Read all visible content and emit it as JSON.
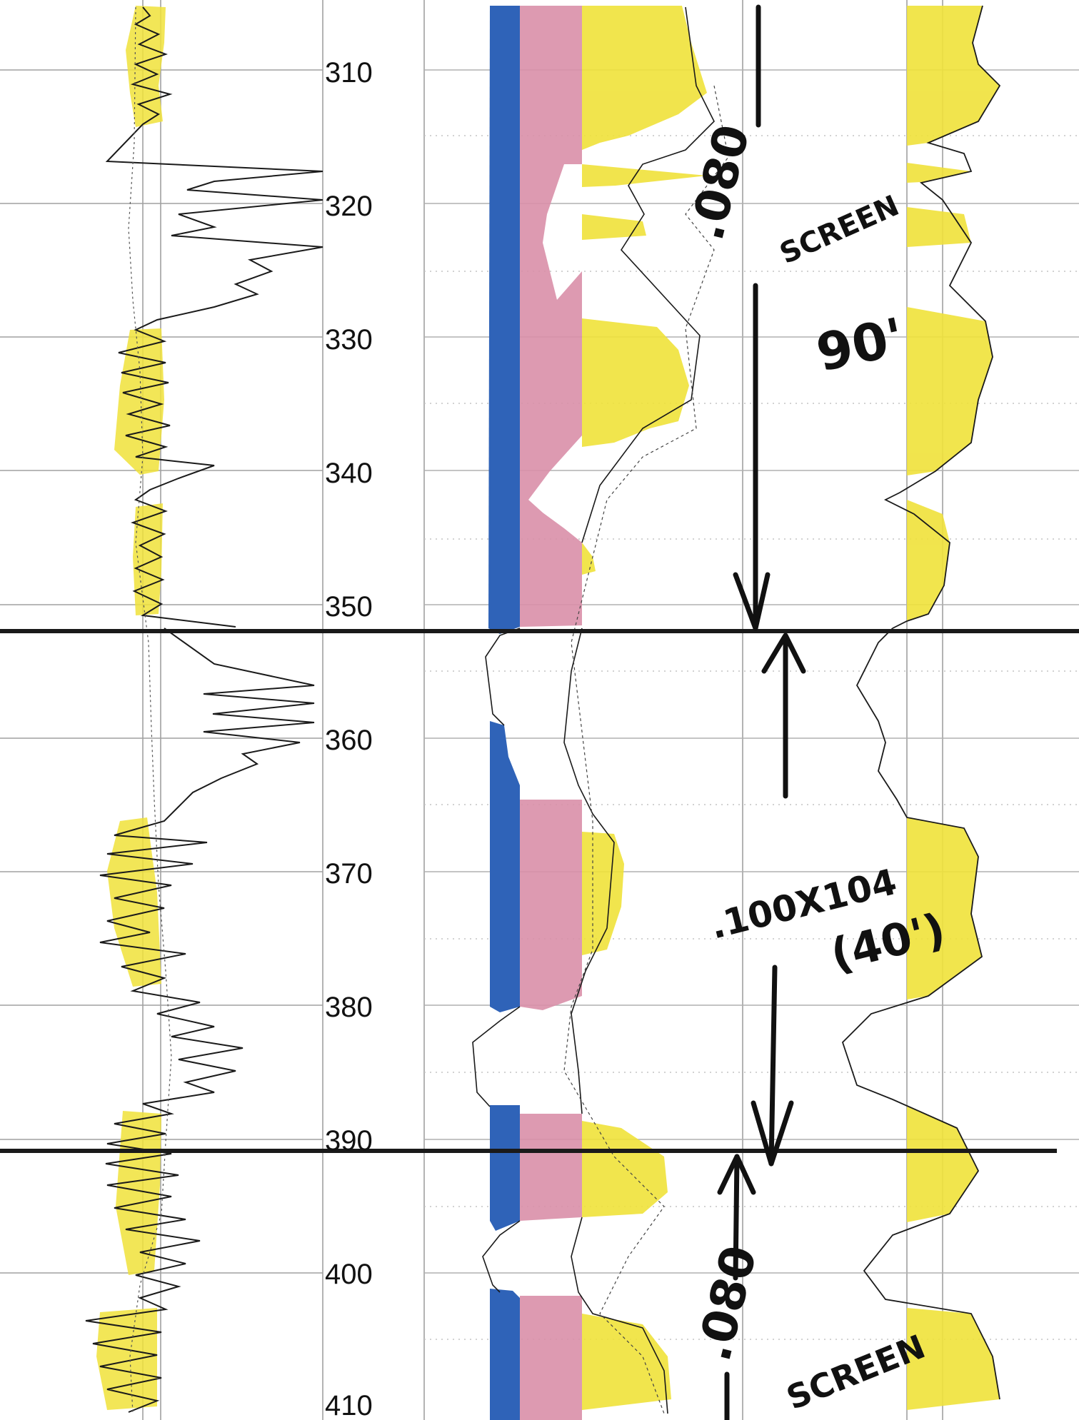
{
  "log": {
    "depth_labels": [
      "310",
      "320",
      "330",
      "340",
      "350",
      "360",
      "370",
      "380",
      "390",
      "400",
      "410"
    ],
    "depth_axis": {
      "start": 310,
      "end": 410,
      "step": 10
    },
    "intervals": [
      {
        "top": 352,
        "base": 391,
        "note": ".100X104",
        "length": "(40')"
      }
    ],
    "screens": [
      {
        "label1": ".080",
        "label2": "SCREEN",
        "length": "90'"
      },
      {
        "label1": ".080",
        "label2": "SCREEN"
      }
    ],
    "colors": {
      "yellow": "#f0e23a",
      "blue": "#2f63b8",
      "pink": "#d98fa8",
      "grid": "#9a9a9a",
      "curve": "#1a1a1a"
    }
  }
}
